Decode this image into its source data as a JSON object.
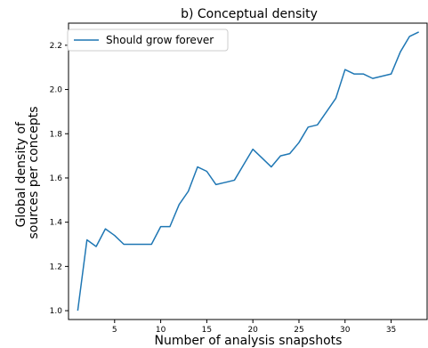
{
  "chart_data": {
    "type": "line",
    "title": "b) Conceptual density",
    "xlabel": "Number of analysis snapshots",
    "ylabel": [
      "Global density of",
      "sources per concepts"
    ],
    "xlim": [
      0,
      39
    ],
    "ylim": [
      0.96,
      2.3
    ],
    "xticks": [
      5,
      10,
      15,
      20,
      25,
      30,
      35
    ],
    "yticks": [
      1.0,
      1.2,
      1.4,
      1.6,
      1.8,
      2.0,
      2.2
    ],
    "ytick_labels": [
      "1.0",
      "1.2",
      "1.4",
      "1.6",
      "1.8",
      "2.0",
      "2.2"
    ],
    "grid": false,
    "legend_position": "top-left",
    "series": [
      {
        "name": "Should grow forever",
        "color": "#1f77b4",
        "x": [
          1,
          2,
          3,
          4,
          5,
          6,
          7,
          8,
          9,
          10,
          11,
          12,
          13,
          14,
          15,
          16,
          17,
          18,
          19,
          20,
          21,
          22,
          23,
          24,
          25,
          26,
          27,
          28,
          29,
          30,
          31,
          32,
          33,
          34,
          35,
          36,
          37,
          38
        ],
        "y": [
          1.0,
          1.32,
          1.29,
          1.37,
          1.34,
          1.3,
          1.3,
          1.3,
          1.3,
          1.38,
          1.38,
          1.48,
          1.54,
          1.65,
          1.63,
          1.57,
          1.58,
          1.59,
          1.66,
          1.73,
          1.69,
          1.65,
          1.7,
          1.71,
          1.76,
          1.83,
          1.84,
          1.9,
          1.96,
          2.09,
          2.07,
          2.07,
          2.05,
          2.06,
          2.07,
          2.17,
          2.24,
          2.26
        ]
      }
    ]
  }
}
